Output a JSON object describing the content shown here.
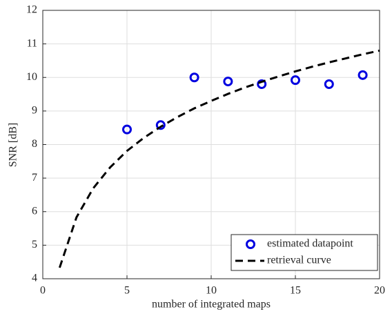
{
  "chart_data": {
    "type": "scatter",
    "xlabel": "number of integrated maps",
    "ylabel": "SNR [dB]",
    "xlim": [
      0,
      20
    ],
    "xticks": [
      0,
      5,
      10,
      15,
      20
    ],
    "ylim": [
      4,
      12
    ],
    "yticks": [
      4,
      5,
      6,
      7,
      8,
      9,
      10,
      11,
      12
    ],
    "grid": true,
    "legend": "lower right",
    "series": [
      {
        "name": "estimated datapoint",
        "type": "scatter",
        "color": "#0000e0",
        "x": [
          5,
          7,
          9,
          11,
          13,
          15,
          17,
          19
        ],
        "values": [
          8.45,
          8.58,
          10.0,
          9.88,
          9.8,
          9.92,
          9.8,
          10.07
        ]
      },
      {
        "name": "retrieval curve",
        "type": "line",
        "color": "#000000",
        "line_style": "dashed",
        "x": [
          1,
          2,
          3,
          4,
          5,
          6,
          7,
          8,
          9,
          10,
          11,
          12,
          13,
          14,
          15,
          16,
          17,
          18,
          19,
          20
        ],
        "values": [
          4.33,
          5.83,
          6.7,
          7.32,
          7.81,
          8.2,
          8.53,
          8.82,
          9.08,
          9.3,
          9.51,
          9.7,
          9.87,
          10.03,
          10.18,
          10.32,
          10.45,
          10.57,
          10.69,
          10.8
        ]
      }
    ]
  }
}
